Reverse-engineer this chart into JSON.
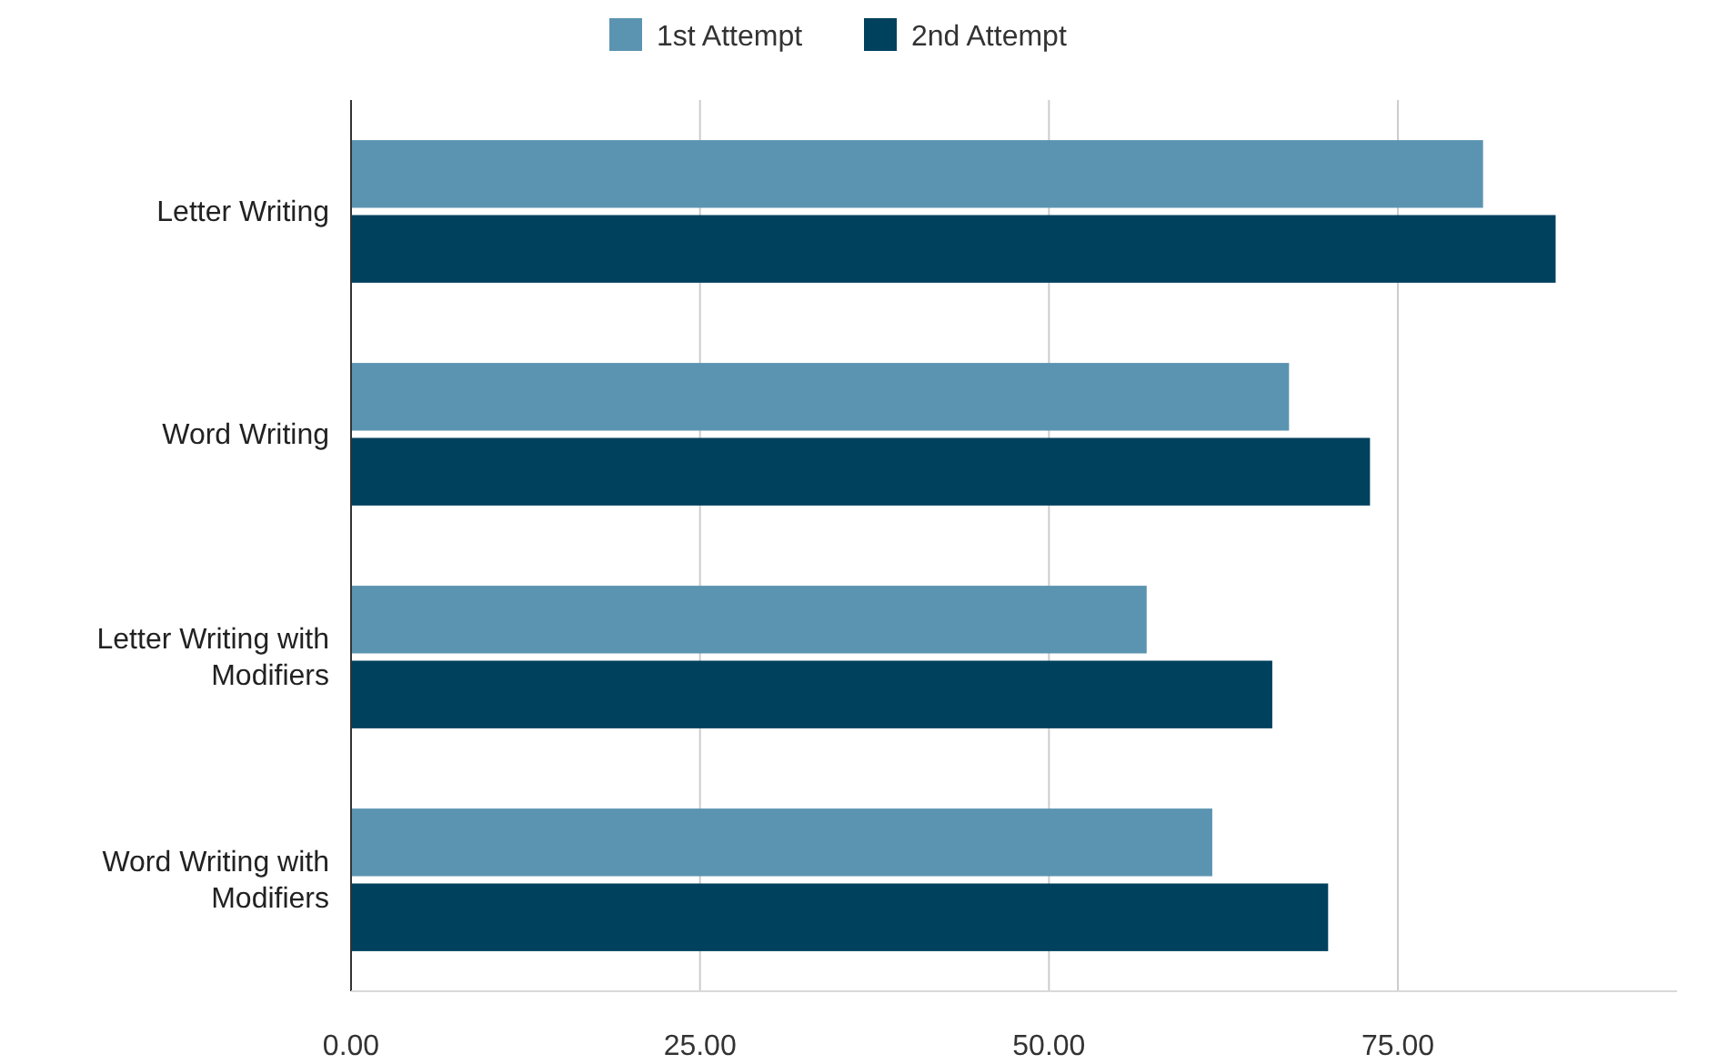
{
  "chart_data": {
    "type": "bar",
    "orientation": "horizontal",
    "categories": [
      "Letter Writing",
      "Word Writing",
      "Letter Writing with Modifiers",
      "Word Writing with Modifiers"
    ],
    "series": [
      {
        "name": "1st Attempt",
        "color": "#5b94b1",
        "values": [
          81.1,
          67.2,
          57.0,
          61.7
        ]
      },
      {
        "name": "2nd Attempt",
        "color": "#00415e",
        "values": [
          86.3,
          73.0,
          66.0,
          70.0
        ]
      }
    ],
    "xlim": [
      0,
      95
    ],
    "xticks": [
      {
        "value": 0,
        "label": "0.00"
      },
      {
        "value": 25,
        "label": "25.00"
      },
      {
        "value": 50,
        "label": "50.00"
      },
      {
        "value": 75,
        "label": "75.00"
      }
    ],
    "grid": "x",
    "legend": "top"
  }
}
